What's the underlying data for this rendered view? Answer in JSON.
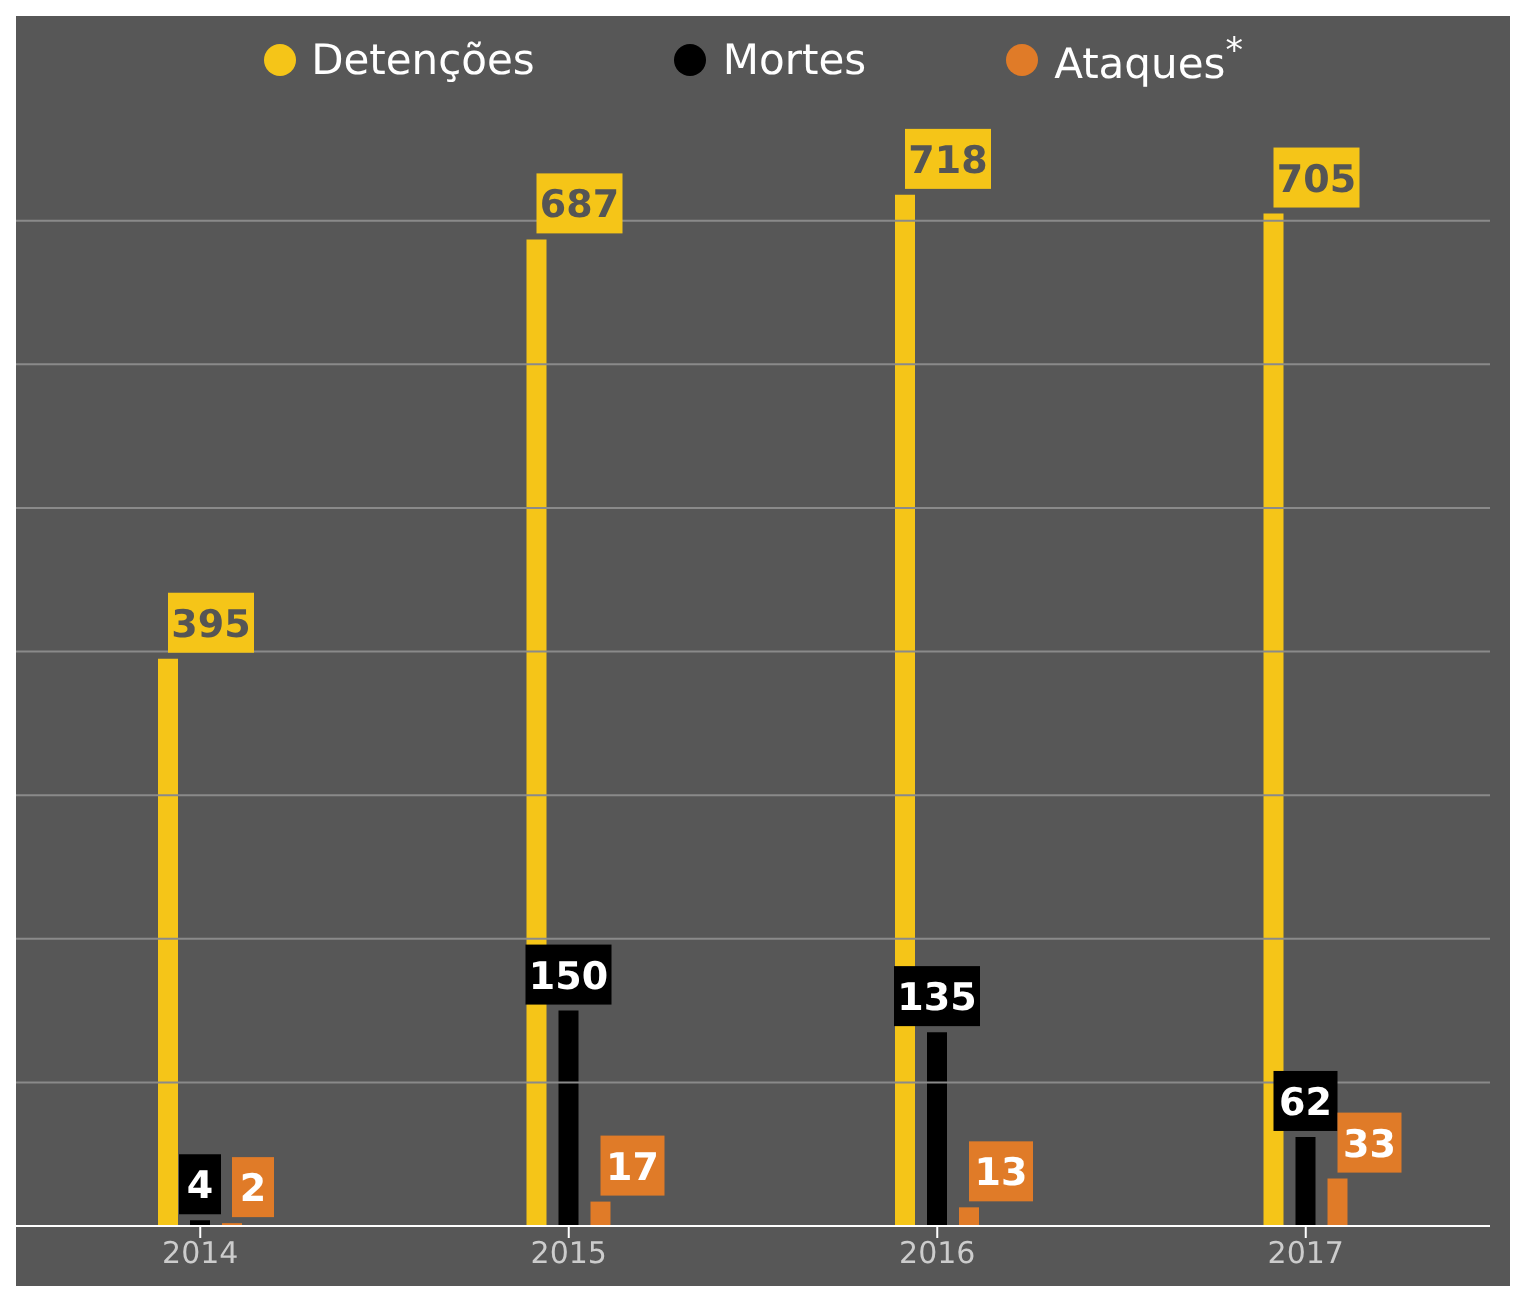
{
  "chart_data": {
    "type": "bar",
    "categories": [
      "2014",
      "2015",
      "2016",
      "2017"
    ],
    "series": [
      {
        "name": "Detenções",
        "color": "#f5c518",
        "values": [
          395,
          687,
          718,
          705
        ]
      },
      {
        "name": "Mortes",
        "color": "#000000",
        "values": [
          4,
          150,
          135,
          62
        ]
      },
      {
        "name": "Ataques$^{*}$",
        "color": "#e07b28",
        "values": [
          2,
          17,
          13,
          33
        ]
      }
    ],
    "ylim": [
      0,
      720
    ],
    "yticks": [
      {
        "value": 100,
        "label": null
      },
      {
        "value": 200,
        "label": null
      },
      {
        "value": 300,
        "label": null
      },
      {
        "value": 400,
        "label": null
      },
      {
        "value": 500,
        "label": null
      },
      {
        "value": 600,
        "label": null
      },
      {
        "value": 700,
        "label": null
      }
    ],
    "grid": "y",
    "legend": "top",
    "tick_labels": "x",
    "data_labels": true
  }
}
